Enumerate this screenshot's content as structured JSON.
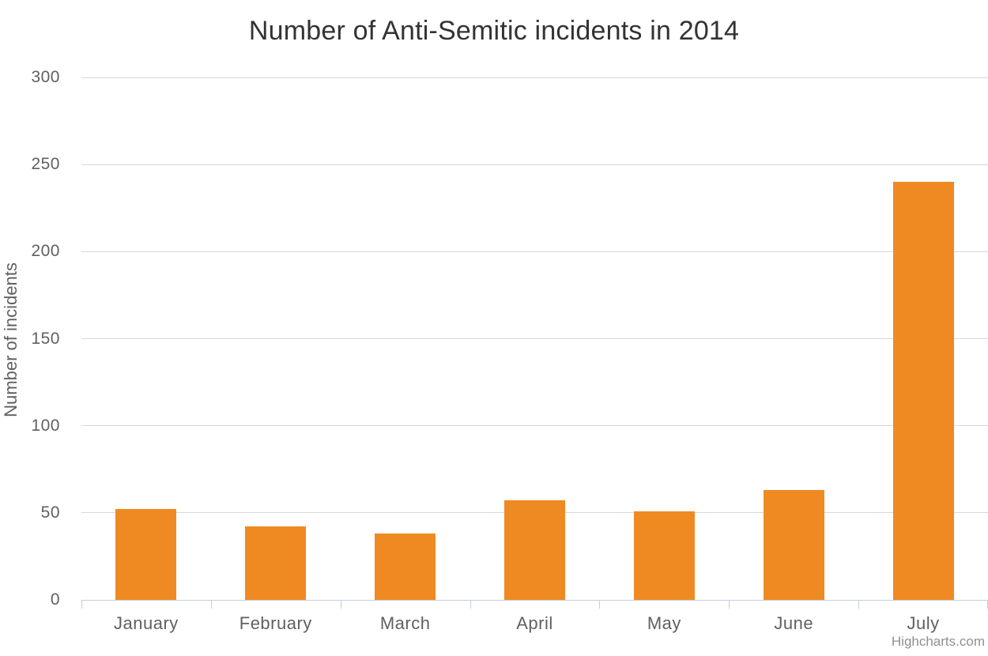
{
  "chart": {
    "credits_label": "Highcharts.com",
    "colors": {
      "bar": "#ef8a23",
      "gridline": "#d8d8d8",
      "axis_line": "#c0d0e0",
      "tick": "#c0d0e0",
      "axis_label": "#606060",
      "title_text": "#333333",
      "credits_text": "#909090",
      "background": "#ffffff"
    }
  },
  "chart_data": {
    "type": "bar",
    "title": "Number of Anti-Semitic incidents in 2014",
    "xlabel": "",
    "ylabel": "Number of incidents",
    "categories": [
      "January",
      "February",
      "March",
      "April",
      "May",
      "June",
      "July"
    ],
    "values": [
      52,
      42,
      38,
      57,
      51,
      63,
      240
    ],
    "ylim": [
      0,
      300
    ],
    "ytick_step": 50,
    "yticks": [
      0,
      50,
      100,
      150,
      200,
      250,
      300
    ],
    "grid": true,
    "legend": false
  }
}
